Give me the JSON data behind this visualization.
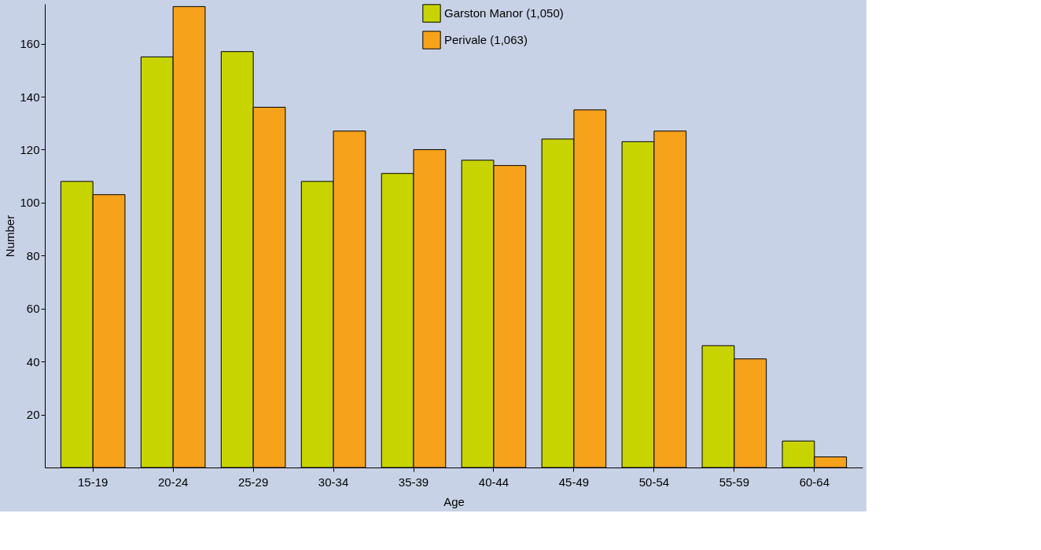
{
  "chart_data": {
    "type": "bar",
    "xlabel": "Age",
    "ylabel": "Number",
    "categories": [
      "15-19",
      "20-24",
      "25-29",
      "30-34",
      "35-39",
      "40-44",
      "45-49",
      "50-54",
      "55-59",
      "60-64"
    ],
    "series": [
      {
        "name": "Garston Manor (1,050)",
        "color": "#c8d400",
        "values": [
          108,
          155,
          157,
          108,
          111,
          116,
          124,
          123,
          46,
          10
        ]
      },
      {
        "name": "Perivale (1,063)",
        "color": "#f7a21b",
        "values": [
          103,
          174,
          136,
          127,
          120,
          114,
          135,
          127,
          41,
          4
        ]
      }
    ],
    "ylim": [
      0,
      175
    ],
    "yticks": [
      20,
      40,
      60,
      80,
      100,
      120,
      140,
      160
    ],
    "grid": false,
    "legend": "top"
  }
}
